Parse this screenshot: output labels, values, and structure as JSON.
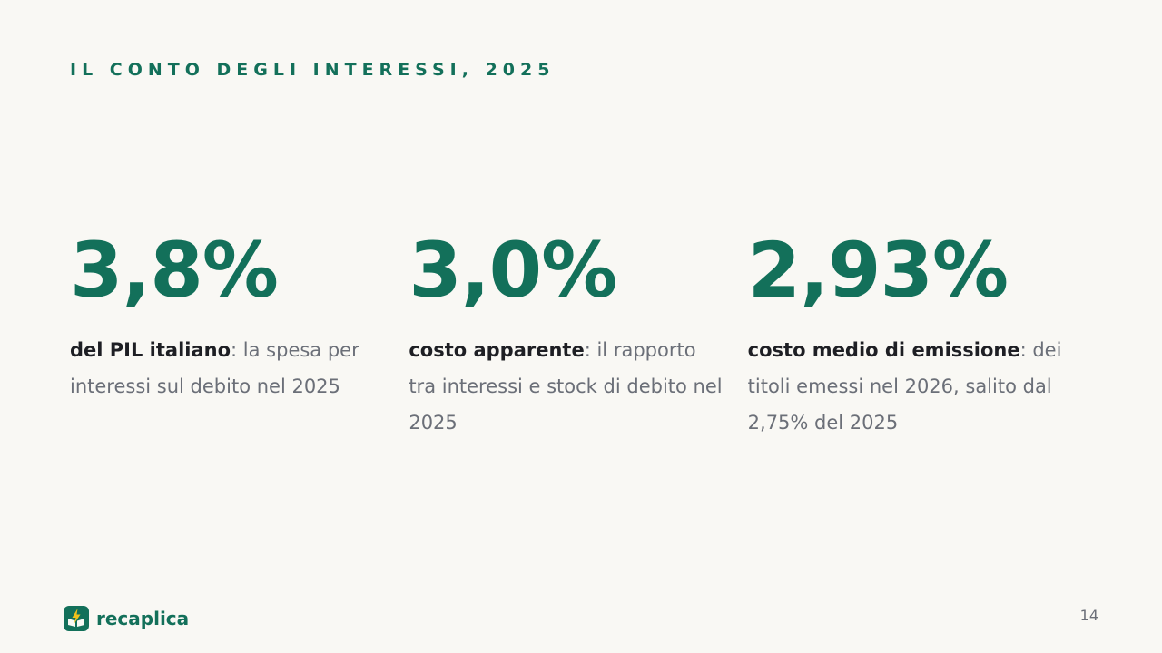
{
  "header": {
    "eyebrow": "IL CONTO DEGLI INTERESSI, 2025"
  },
  "stats": [
    {
      "value": "3,8%",
      "bold": "del PIL italiano",
      "rest": ": la spesa per interessi sul debito nel 2025"
    },
    {
      "value": "3,0%",
      "bold": "costo apparente",
      "rest": ": il rapporto tra interessi e stock di debito nel 2025"
    },
    {
      "value": "2,93%",
      "bold": "costo medio di emissione",
      "rest": ": dei titoli emessi nel 2026, salito dal 2,75% del 2025"
    }
  ],
  "footer": {
    "brand": "recaplica",
    "logo_icon": "recaplica-logo-icon",
    "page": "14"
  },
  "colors": {
    "accent": "#13705a",
    "background": "#f9f8f4",
    "text_strong": "#1e1f24",
    "text_muted": "#6b6f78",
    "logo_bolt": "#f2c21b"
  }
}
